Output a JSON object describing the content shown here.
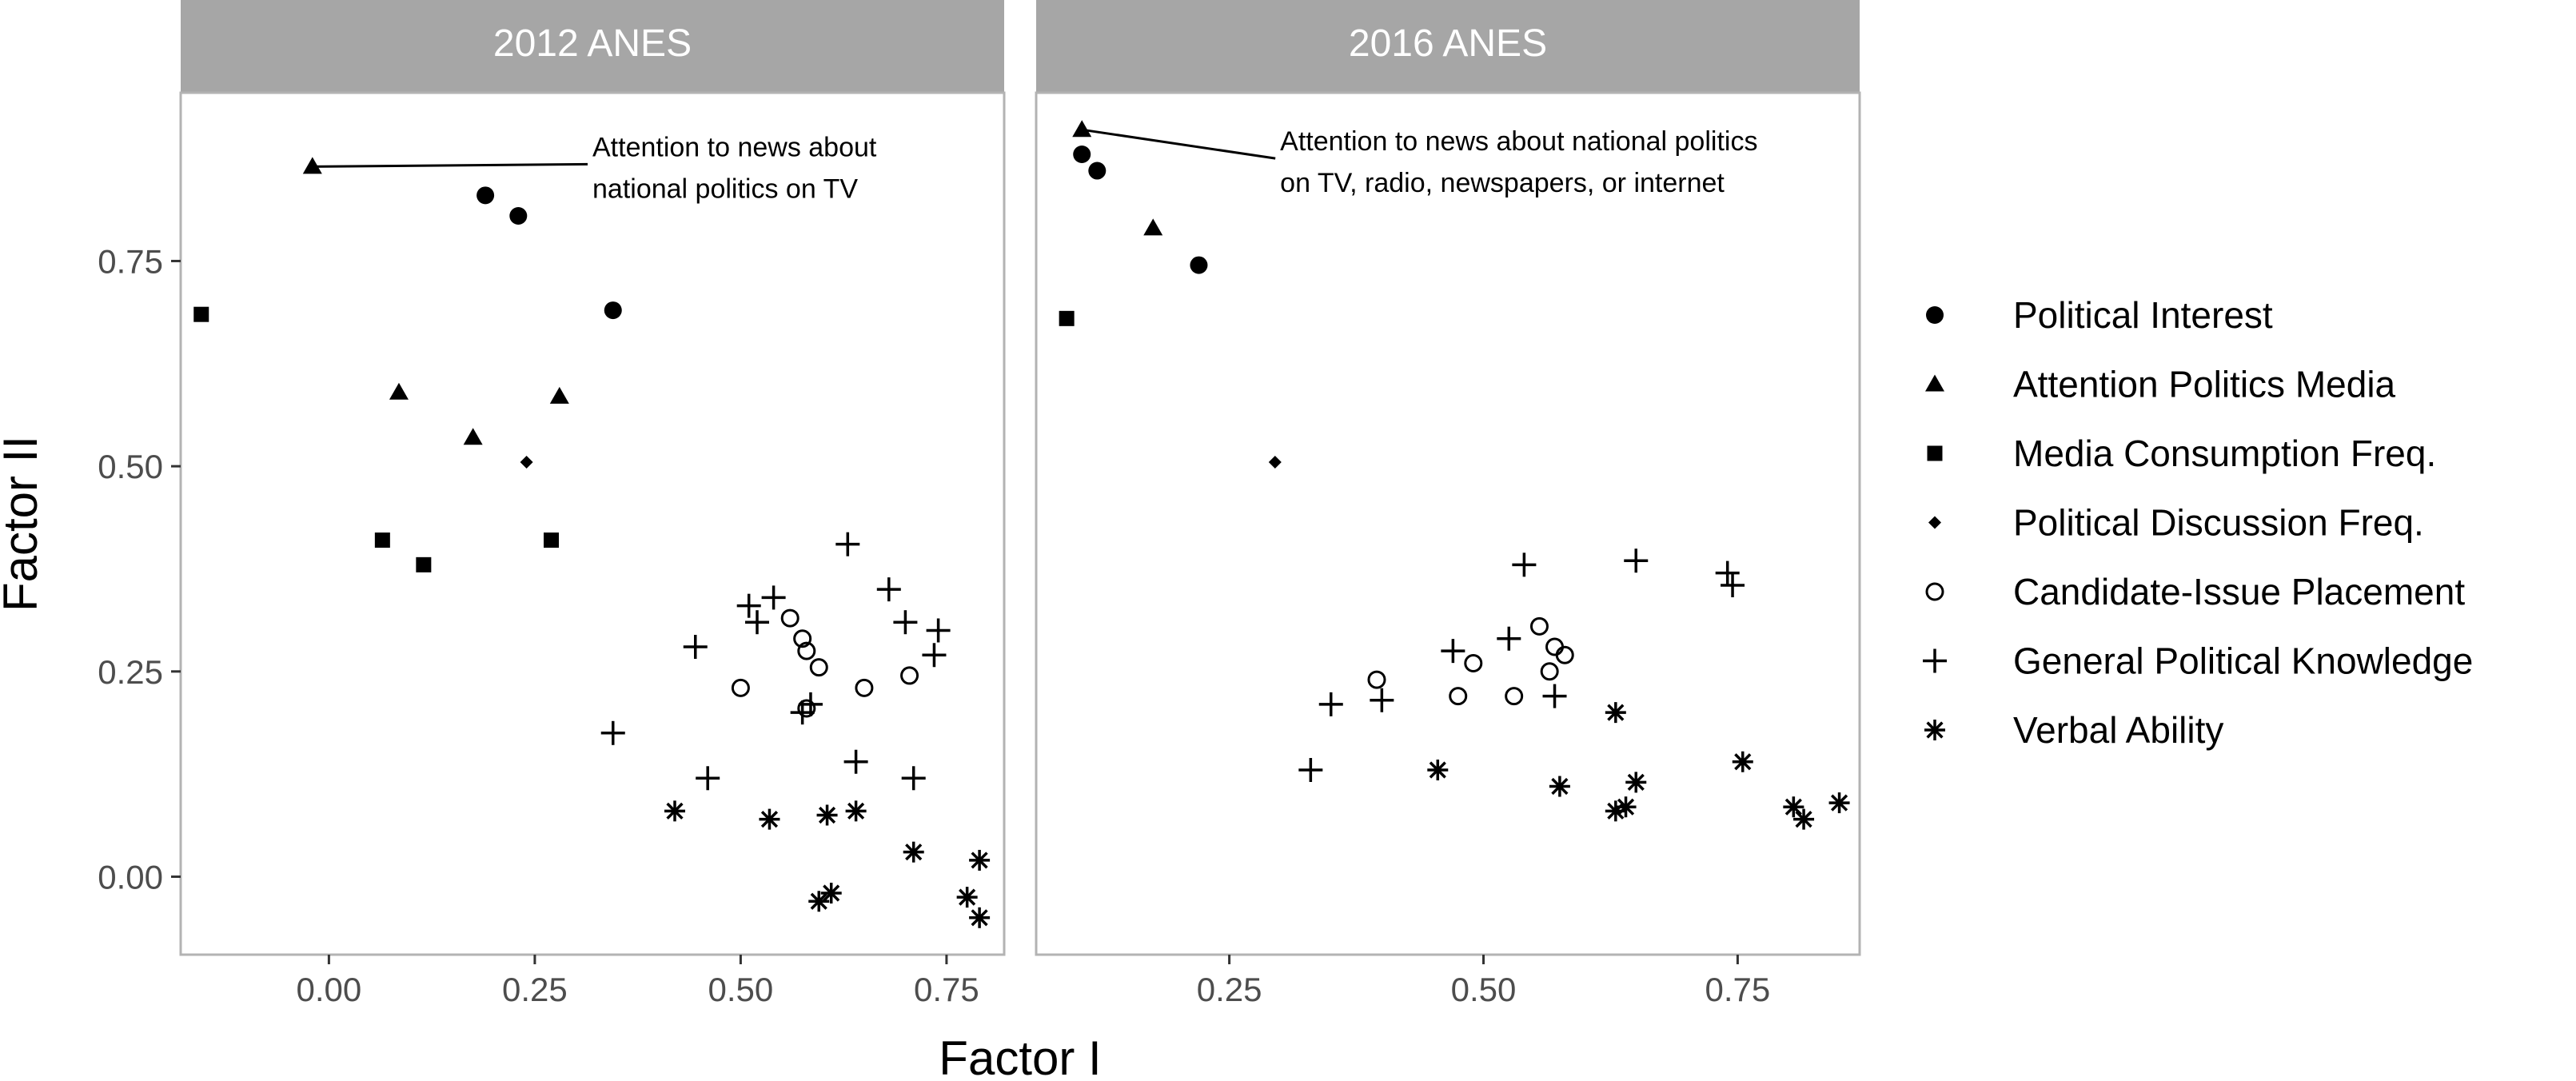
{
  "chart_data": {
    "type": "scatter",
    "xlabel": "Factor I",
    "ylabel": "Factor II",
    "facets": [
      "2012 ANES",
      "2016 ANES"
    ],
    "grid": false,
    "legend_position": "right",
    "xlim": [
      [
        -0.18,
        0.82
      ],
      [
        0.06,
        0.87
      ]
    ],
    "ylim": [
      -0.095,
      0.955
    ],
    "x_ticks": [
      {
        "value": 0.0,
        "label": "0.00"
      },
      {
        "value": 0.25,
        "label": "0.25"
      },
      {
        "value": 0.5,
        "label": "0.50"
      },
      {
        "value": 0.75,
        "label": "0.75"
      }
    ],
    "x_ticks_2016": [
      {
        "value": 0.25,
        "label": "0.25"
      },
      {
        "value": 0.5,
        "label": "0.50"
      },
      {
        "value": 0.75,
        "label": "0.75"
      }
    ],
    "y_ticks": [
      {
        "value": 0.0,
        "label": "0.00"
      },
      {
        "value": 0.25,
        "label": "0.25"
      },
      {
        "value": 0.5,
        "label": "0.50"
      },
      {
        "value": 0.75,
        "label": "0.75"
      }
    ],
    "series": [
      {
        "name": "Political Interest",
        "shape": "circle"
      },
      {
        "name": "Attention Politics Media",
        "shape": "triangle"
      },
      {
        "name": "Media Consumption Freq.",
        "shape": "square"
      },
      {
        "name": "Political Discussion Freq.",
        "shape": "diamond"
      },
      {
        "name": "Candidate-Issue Placement",
        "shape": "open-circle"
      },
      {
        "name": "General Political Knowledge",
        "shape": "plus"
      },
      {
        "name": "Verbal Ability",
        "shape": "asterisk"
      }
    ],
    "panels": [
      {
        "facet": "2012 ANES",
        "annotation": {
          "lines": [
            "Attention to news about",
            "national politics on TV"
          ],
          "point": [
            -0.02,
            0.865
          ],
          "label_at": [
            0.32,
            0.868
          ]
        },
        "points": {
          "Political Interest": [
            [
              0.19,
              0.83
            ],
            [
              0.23,
              0.805
            ],
            [
              0.345,
              0.69
            ]
          ],
          "Attention Politics Media": [
            [
              -0.02,
              0.865
            ],
            [
              0.085,
              0.59
            ],
            [
              0.175,
              0.535
            ],
            [
              0.28,
              0.585
            ]
          ],
          "Media Consumption Freq.": [
            [
              -0.155,
              0.685
            ],
            [
              0.065,
              0.41
            ],
            [
              0.115,
              0.38
            ],
            [
              0.27,
              0.41
            ]
          ],
          "Political Discussion Freq.": [
            [
              0.24,
              0.505
            ]
          ],
          "Candidate-Issue Placement": [
            [
              0.5,
              0.23
            ],
            [
              0.56,
              0.315
            ],
            [
              0.575,
              0.29
            ],
            [
              0.58,
              0.275
            ],
            [
              0.595,
              0.255
            ],
            [
              0.58,
              0.205
            ],
            [
              0.65,
              0.23
            ],
            [
              0.705,
              0.245
            ]
          ],
          "General Political Knowledge": [
            [
              0.345,
              0.175
            ],
            [
              0.445,
              0.28
            ],
            [
              0.46,
              0.12
            ],
            [
              0.51,
              0.33
            ],
            [
              0.52,
              0.31
            ],
            [
              0.54,
              0.34
            ],
            [
              0.575,
              0.2
            ],
            [
              0.585,
              0.21
            ],
            [
              0.63,
              0.405
            ],
            [
              0.64,
              0.14
            ],
            [
              0.68,
              0.35
            ],
            [
              0.7,
              0.31
            ],
            [
              0.71,
              0.12
            ],
            [
              0.74,
              0.3
            ],
            [
              0.735,
              0.27
            ]
          ],
          "Verbal Ability": [
            [
              0.42,
              0.08
            ],
            [
              0.535,
              0.07
            ],
            [
              0.595,
              -0.03
            ],
            [
              0.605,
              0.075
            ],
            [
              0.61,
              -0.02
            ],
            [
              0.64,
              0.08
            ],
            [
              0.71,
              0.03
            ],
            [
              0.775,
              -0.025
            ],
            [
              0.79,
              0.02
            ],
            [
              0.79,
              -0.05
            ]
          ]
        }
      },
      {
        "facet": "2016 ANES",
        "annotation": {
          "lines": [
            "Attention to news about national politics",
            "on TV, radio, newspapers, or internet"
          ],
          "point": [
            0.105,
            0.91
          ],
          "label_at": [
            0.3,
            0.875
          ]
        },
        "points": {
          "Political Interest": [
            [
              0.105,
              0.88
            ],
            [
              0.12,
              0.86
            ],
            [
              0.22,
              0.745
            ]
          ],
          "Attention Politics Media": [
            [
              0.105,
              0.91
            ],
            [
              0.175,
              0.79
            ]
          ],
          "Media Consumption Freq.": [
            [
              0.09,
              0.68
            ]
          ],
          "Political Discussion Freq.": [
            [
              0.295,
              0.505
            ]
          ],
          "Candidate-Issue Placement": [
            [
              0.395,
              0.24
            ],
            [
              0.475,
              0.22
            ],
            [
              0.49,
              0.26
            ],
            [
              0.53,
              0.22
            ],
            [
              0.555,
              0.305
            ],
            [
              0.565,
              0.25
            ],
            [
              0.57,
              0.28
            ],
            [
              0.58,
              0.27
            ]
          ],
          "General Political Knowledge": [
            [
              0.33,
              0.13
            ],
            [
              0.35,
              0.21
            ],
            [
              0.4,
              0.215
            ],
            [
              0.47,
              0.275
            ],
            [
              0.525,
              0.29
            ],
            [
              0.54,
              0.38
            ],
            [
              0.57,
              0.22
            ],
            [
              0.65,
              0.385
            ],
            [
              0.74,
              0.37
            ],
            [
              0.745,
              0.355
            ]
          ],
          "Verbal Ability": [
            [
              0.455,
              0.13
            ],
            [
              0.575,
              0.11
            ],
            [
              0.63,
              0.2
            ],
            [
              0.63,
              0.08
            ],
            [
              0.64,
              0.085
            ],
            [
              0.65,
              0.115
            ],
            [
              0.755,
              0.14
            ],
            [
              0.805,
              0.085
            ],
            [
              0.815,
              0.07
            ],
            [
              0.85,
              0.09
            ]
          ]
        }
      }
    ]
  }
}
